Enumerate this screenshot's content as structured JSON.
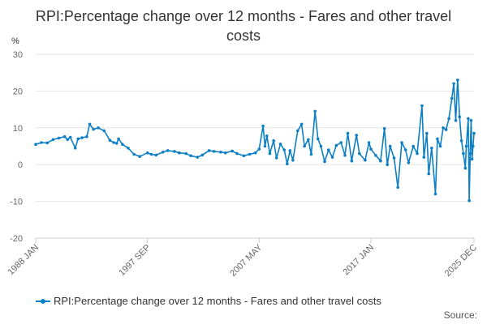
{
  "chart_data": {
    "type": "line",
    "title": "RPI:Percentage change over 12 months - Fares and other travel costs",
    "y_unit_label": "%",
    "ylim": [
      -20,
      30
    ],
    "y_ticks": [
      -20,
      -10,
      0,
      10,
      20,
      30
    ],
    "x_range": [
      "1988 JAN",
      "2025 DEC"
    ],
    "x_tick_labels": [
      "1988 JAN",
      "1997 SEP",
      "2007 MAY",
      "2017 JAN",
      "2025 DEC"
    ],
    "grid": "horizontal",
    "legend_position": "bottom",
    "source_label": "Source:",
    "color": "#0d7fc4",
    "series": [
      {
        "name": "RPI:Percentage change over 12 months - Fares and other travel costs",
        "points": [
          [
            "1988-01",
            5.5
          ],
          [
            "1988-07",
            6.0
          ],
          [
            "1989-01",
            5.9
          ],
          [
            "1989-07",
            6.8
          ],
          [
            "1990-01",
            7.2
          ],
          [
            "1990-07",
            7.6
          ],
          [
            "1990-10",
            6.8
          ],
          [
            "1991-01",
            7.4
          ],
          [
            "1991-06",
            4.5
          ],
          [
            "1991-09",
            7.0
          ],
          [
            "1992-01",
            7.3
          ],
          [
            "1992-06",
            7.6
          ],
          [
            "1992-09",
            11.0
          ],
          [
            "1993-01",
            9.6
          ],
          [
            "1993-06",
            10.0
          ],
          [
            "1993-12",
            9.2
          ],
          [
            "1994-06",
            6.6
          ],
          [
            "1994-10",
            6.0
          ],
          [
            "1995-01",
            5.8
          ],
          [
            "1995-03",
            7.0
          ],
          [
            "1995-07",
            5.5
          ],
          [
            "1996-01",
            4.5
          ],
          [
            "1996-07",
            2.8
          ],
          [
            "1997-01",
            2.2
          ],
          [
            "1997-09",
            3.2
          ],
          [
            "1998-01",
            2.8
          ],
          [
            "1998-06",
            2.6
          ],
          [
            "1999-01",
            3.4
          ],
          [
            "1999-06",
            3.8
          ],
          [
            "2000-01",
            3.6
          ],
          [
            "2000-06",
            3.2
          ],
          [
            "2001-01",
            3.0
          ],
          [
            "2001-06",
            2.4
          ],
          [
            "2002-01",
            2.0
          ],
          [
            "2002-06",
            2.6
          ],
          [
            "2003-01",
            3.8
          ],
          [
            "2003-06",
            3.6
          ],
          [
            "2004-01",
            3.4
          ],
          [
            "2004-06",
            3.2
          ],
          [
            "2005-01",
            3.7
          ],
          [
            "2005-06",
            3.0
          ],
          [
            "2006-01",
            2.4
          ],
          [
            "2006-07",
            2.8
          ],
          [
            "2007-01",
            3.2
          ],
          [
            "2007-05",
            4.2
          ],
          [
            "2007-09",
            10.5
          ],
          [
            "2007-11",
            5.0
          ],
          [
            "2008-01",
            7.8
          ],
          [
            "2008-04",
            3.0
          ],
          [
            "2008-08",
            6.5
          ],
          [
            "2008-11",
            1.8
          ],
          [
            "2009-03",
            5.6
          ],
          [
            "2009-07",
            4.0
          ],
          [
            "2009-10",
            0.2
          ],
          [
            "2010-01",
            3.8
          ],
          [
            "2010-04",
            1.2
          ],
          [
            "2010-09",
            9.2
          ],
          [
            "2011-01",
            11.0
          ],
          [
            "2011-04",
            5.0
          ],
          [
            "2011-08",
            6.8
          ],
          [
            "2011-11",
            2.8
          ],
          [
            "2012-03",
            14.5
          ],
          [
            "2012-06",
            7.0
          ],
          [
            "2012-09",
            5.0
          ],
          [
            "2013-01",
            0.8
          ],
          [
            "2013-05",
            4.0
          ],
          [
            "2013-09",
            2.0
          ],
          [
            "2014-01",
            5.2
          ],
          [
            "2014-06",
            6.0
          ],
          [
            "2014-10",
            2.5
          ],
          [
            "2015-01",
            8.5
          ],
          [
            "2015-05",
            1.0
          ],
          [
            "2015-10",
            8.0
          ],
          [
            "2016-01",
            3.0
          ],
          [
            "2016-07",
            1.2
          ],
          [
            "2016-11",
            6.0
          ],
          [
            "2017-01",
            4.2
          ],
          [
            "2017-06",
            2.5
          ],
          [
            "2017-11",
            1.0
          ],
          [
            "2018-03",
            9.8
          ],
          [
            "2018-06",
            0.0
          ],
          [
            "2018-09",
            5.0
          ],
          [
            "2019-01",
            1.8
          ],
          [
            "2019-05",
            -6.2
          ],
          [
            "2019-09",
            6.0
          ],
          [
            "2020-01",
            4.0
          ],
          [
            "2020-04",
            0.5
          ],
          [
            "2020-09",
            5.0
          ],
          [
            "2021-01",
            3.0
          ],
          [
            "2021-06",
            16.0
          ],
          [
            "2021-08",
            2.0
          ],
          [
            "2021-11",
            8.5
          ],
          [
            "2022-01",
            -2.5
          ],
          [
            "2022-04",
            4.5
          ],
          [
            "2022-08",
            -8.0
          ],
          [
            "2022-10",
            7.0
          ],
          [
            "2023-01",
            5.0
          ],
          [
            "2023-04",
            10.0
          ],
          [
            "2023-07",
            9.5
          ],
          [
            "2023-10",
            12.5
          ],
          [
            "2024-01",
            18.0
          ],
          [
            "2024-03",
            22.0
          ],
          [
            "2024-05",
            12.0
          ],
          [
            "2024-07",
            23.0
          ],
          [
            "2024-09",
            13.0
          ],
          [
            "2024-11",
            6.5
          ],
          [
            "2025-01",
            3.0
          ],
          [
            "2025-03",
            -1.0
          ],
          [
            "2025-04",
            5.0
          ],
          [
            "2025-06",
            12.5
          ],
          [
            "2025-07",
            -9.8
          ],
          [
            "2025-08",
            3.0
          ],
          [
            "2025-09",
            12.0
          ],
          [
            "2025-10",
            1.5
          ],
          [
            "2025-11",
            5.0
          ],
          [
            "2025-12",
            8.5
          ]
        ]
      }
    ]
  }
}
